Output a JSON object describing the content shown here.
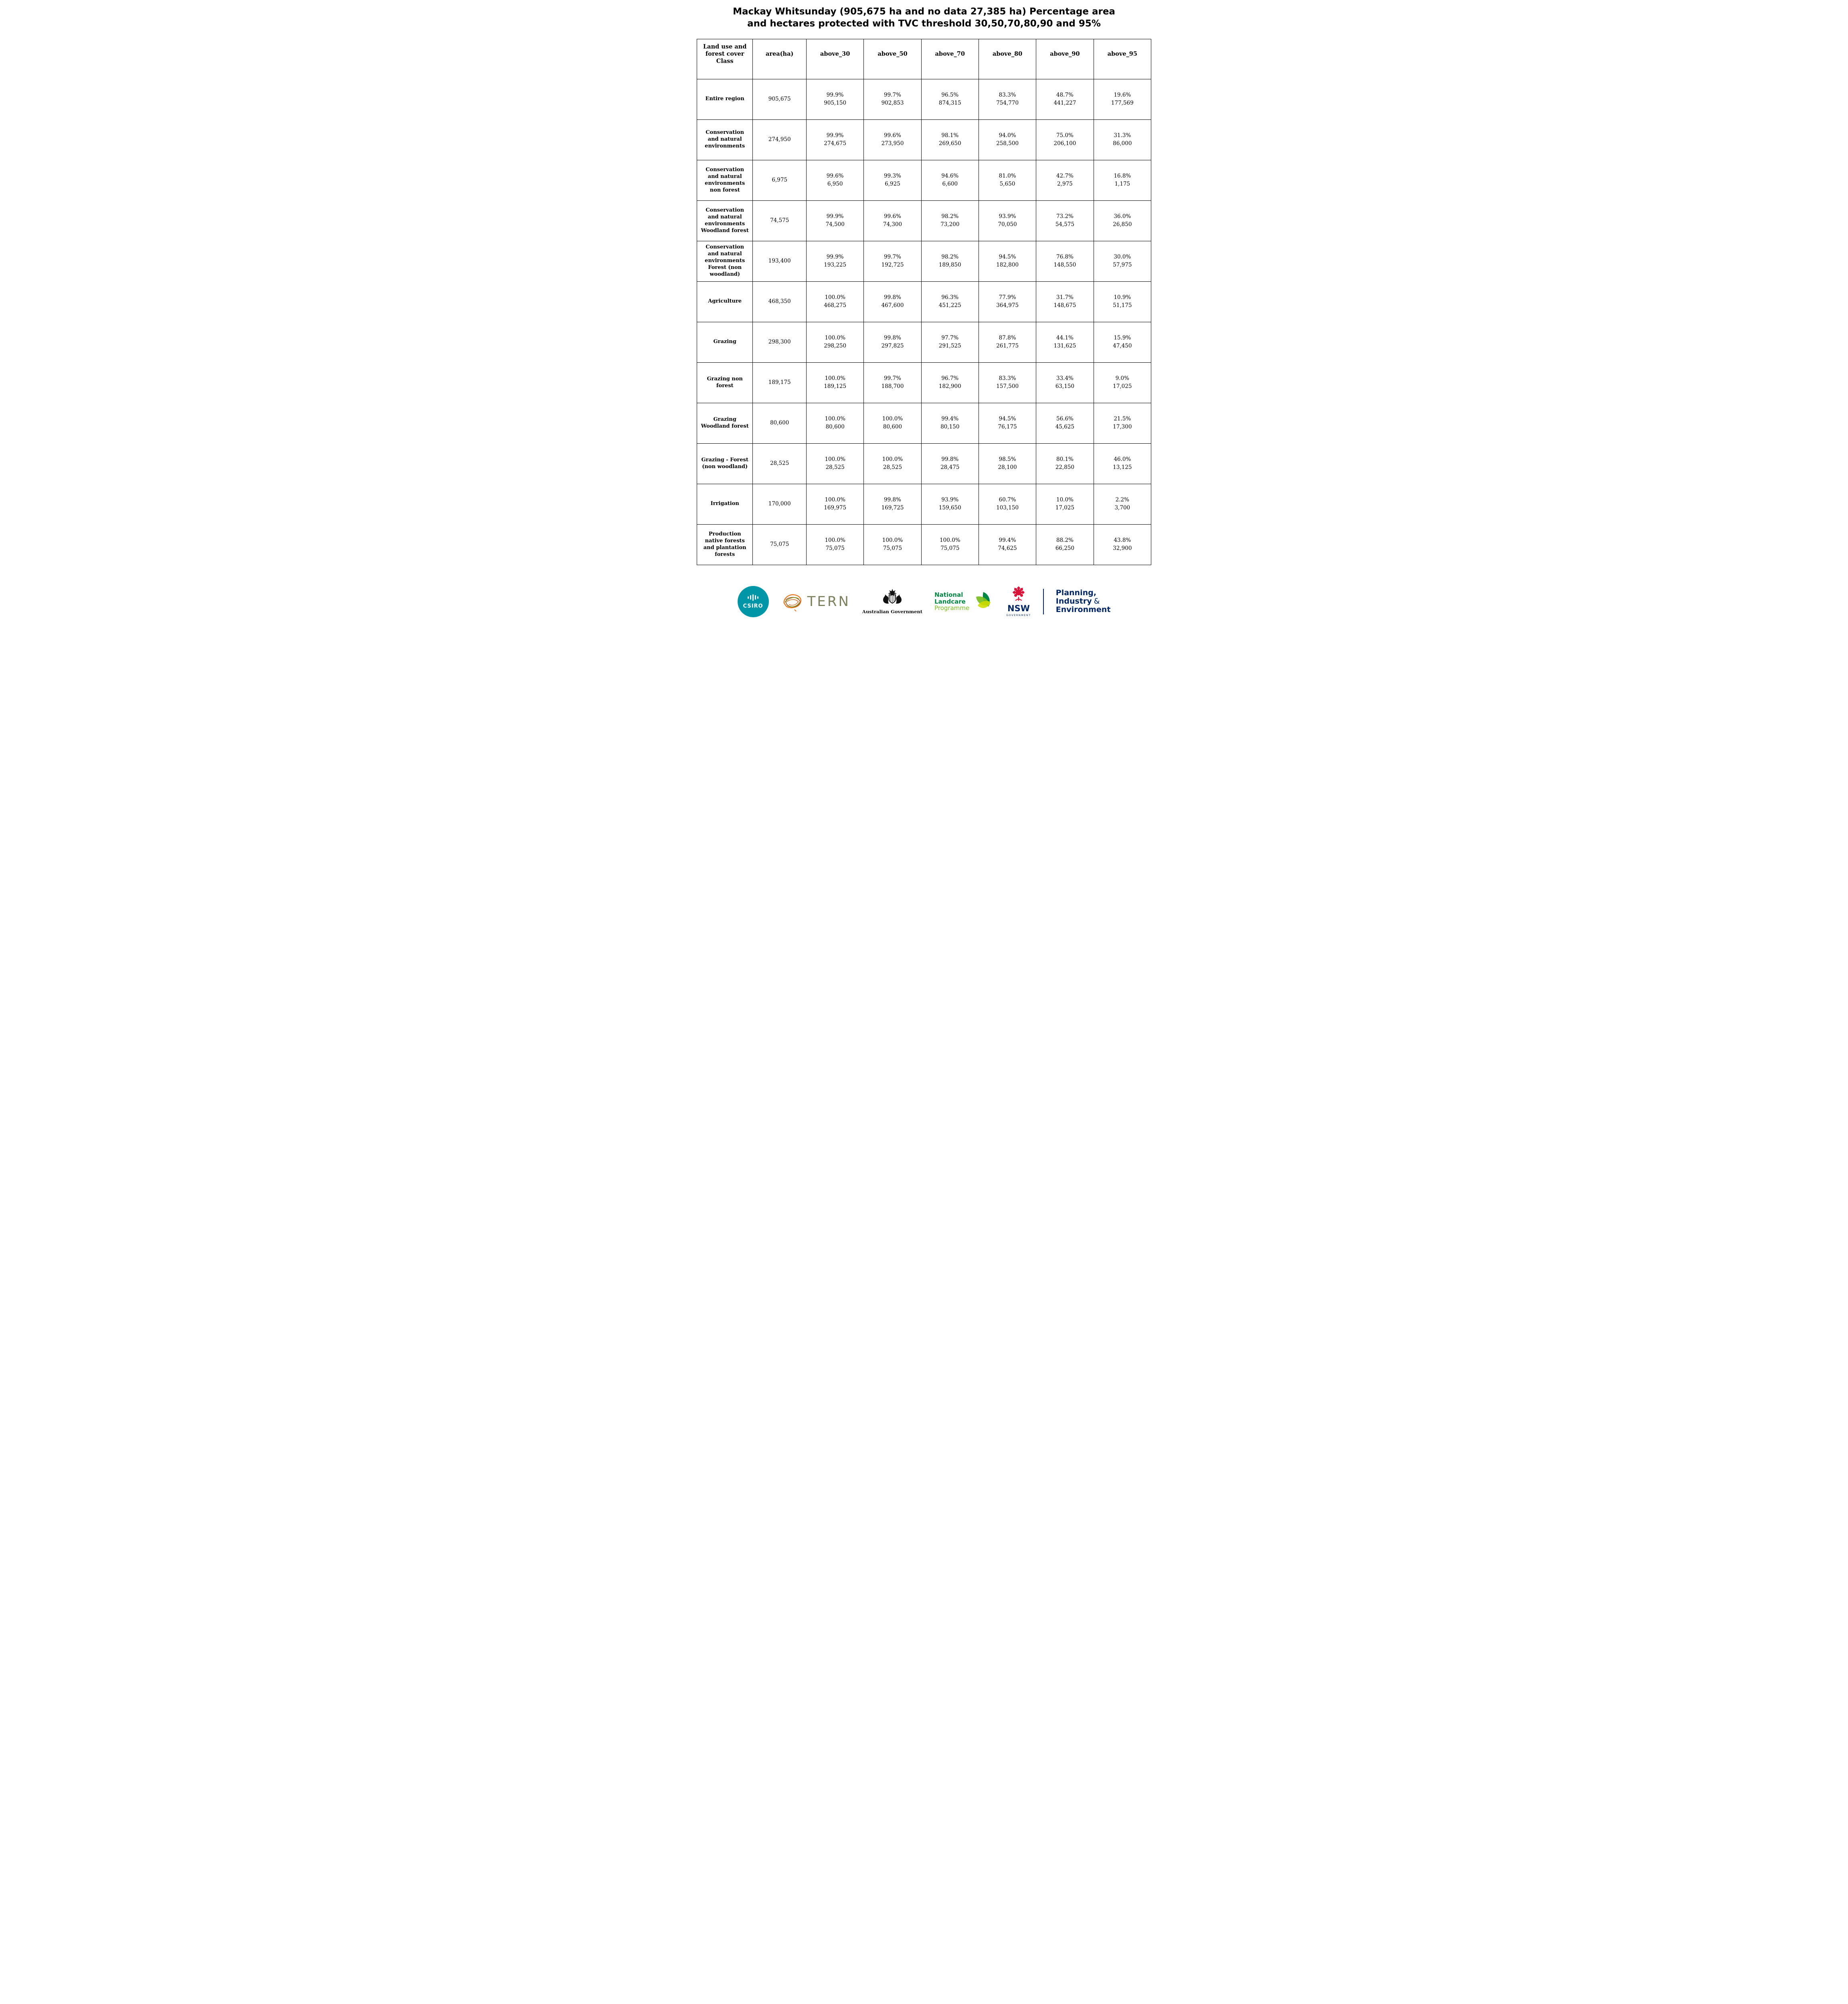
{
  "page": {
    "title_line1": "Mackay Whitsunday (905,675 ha and no data 27,385 ha) Percentage area",
    "title_line2": "and hectares protected with TVC threshold 30,50,70,80,90 and 95%"
  },
  "table": {
    "headers": [
      "Land use and forest cover Class",
      "area(ha)",
      "above_30",
      "above_50",
      "above_70",
      "above_80",
      "above_90",
      "above_95"
    ],
    "rows": [
      {
        "class": "Entire region",
        "area": "905,675",
        "cells": [
          [
            "99.9%",
            "905,150"
          ],
          [
            "99.7%",
            "902,853"
          ],
          [
            "96.5%",
            "874,315"
          ],
          [
            "83.3%",
            "754,770"
          ],
          [
            "48.7%",
            "441,227"
          ],
          [
            "19.6%",
            "177,569"
          ]
        ]
      },
      {
        "class": "Conservation and natural environments",
        "area": "274,950",
        "cells": [
          [
            "99.9%",
            "274,675"
          ],
          [
            "99.6%",
            "273,950"
          ],
          [
            "98.1%",
            "269,650"
          ],
          [
            "94.0%",
            "258,500"
          ],
          [
            "75.0%",
            "206,100"
          ],
          [
            "31.3%",
            "86,000"
          ]
        ]
      },
      {
        "class": "Conservation and natural environments non forest",
        "area": "6,975",
        "cells": [
          [
            "99.6%",
            "6,950"
          ],
          [
            "99.3%",
            "6,925"
          ],
          [
            "94.6%",
            "6,600"
          ],
          [
            "81.0%",
            "5,650"
          ],
          [
            "42.7%",
            "2,975"
          ],
          [
            "16.8%",
            "1,175"
          ]
        ]
      },
      {
        "class": "Conservation and natural environments Woodland forest",
        "area": "74,575",
        "cells": [
          [
            "99.9%",
            "74,500"
          ],
          [
            "99.6%",
            "74,300"
          ],
          [
            "98.2%",
            "73,200"
          ],
          [
            "93.9%",
            "70,050"
          ],
          [
            "73.2%",
            "54,575"
          ],
          [
            "36.0%",
            "26,850"
          ]
        ]
      },
      {
        "class": "Conservation and natural environments Forest (non woodland)",
        "area": "193,400",
        "cells": [
          [
            "99.9%",
            "193,225"
          ],
          [
            "99.7%",
            "192,725"
          ],
          [
            "98.2%",
            "189,850"
          ],
          [
            "94.5%",
            "182,800"
          ],
          [
            "76.8%",
            "148,550"
          ],
          [
            "30.0%",
            "57,975"
          ]
        ]
      },
      {
        "class": "Agriculture",
        "area": "468,350",
        "cells": [
          [
            "100.0%",
            "468,275"
          ],
          [
            "99.8%",
            "467,600"
          ],
          [
            "96.3%",
            "451,225"
          ],
          [
            "77.9%",
            "364,975"
          ],
          [
            "31.7%",
            "148,675"
          ],
          [
            "10.9%",
            "51,175"
          ]
        ]
      },
      {
        "class": "Grazing",
        "area": "298,300",
        "cells": [
          [
            "100.0%",
            "298,250"
          ],
          [
            "99.8%",
            "297,825"
          ],
          [
            "97.7%",
            "291,525"
          ],
          [
            "87.8%",
            "261,775"
          ],
          [
            "44.1%",
            "131,625"
          ],
          [
            "15.9%",
            "47,450"
          ]
        ]
      },
      {
        "class": "Grazing non forest",
        "area": "189,175",
        "cells": [
          [
            "100.0%",
            "189,125"
          ],
          [
            "99.7%",
            "188,700"
          ],
          [
            "96.7%",
            "182,900"
          ],
          [
            "83.3%",
            "157,500"
          ],
          [
            "33.4%",
            "63,150"
          ],
          [
            "9.0%",
            "17,025"
          ]
        ]
      },
      {
        "class": "Grazing Woodland forest",
        "area": "80,600",
        "cells": [
          [
            "100.0%",
            "80,600"
          ],
          [
            "100.0%",
            "80,600"
          ],
          [
            "99.4%",
            "80,150"
          ],
          [
            "94.5%",
            "76,175"
          ],
          [
            "56.6%",
            "45,625"
          ],
          [
            "21.5%",
            "17,300"
          ]
        ]
      },
      {
        "class": "Grazing - Forest (non woodland)",
        "area": "28,525",
        "cells": [
          [
            "100.0%",
            "28,525"
          ],
          [
            "100.0%",
            "28,525"
          ],
          [
            "99.8%",
            "28,475"
          ],
          [
            "98.5%",
            "28,100"
          ],
          [
            "80.1%",
            "22,850"
          ],
          [
            "46.0%",
            "13,125"
          ]
        ]
      },
      {
        "class": "Irrigation",
        "area": "170,000",
        "cells": [
          [
            "100.0%",
            "169,975"
          ],
          [
            "99.8%",
            "169,725"
          ],
          [
            "93.9%",
            "159,650"
          ],
          [
            "60.7%",
            "103,150"
          ],
          [
            "10.0%",
            "17,025"
          ],
          [
            "2.2%",
            "3,700"
          ]
        ]
      },
      {
        "class": "Production native forests and plantation forests",
        "area": "75,075",
        "cells": [
          [
            "100.0%",
            "75,075"
          ],
          [
            "100.0%",
            "75,075"
          ],
          [
            "100.0%",
            "75,075"
          ],
          [
            "99.4%",
            "74,625"
          ],
          [
            "88.2%",
            "66,250"
          ],
          [
            "43.8%",
            "32,900"
          ]
        ]
      }
    ]
  },
  "footer": {
    "csiro": {
      "label": "CSIRO"
    },
    "tern": {
      "label": "TERN"
    },
    "aus_gov": {
      "label": "Australian Government"
    },
    "landcare": {
      "line1": "National",
      "line2": "Landcare",
      "line3": "Programme"
    },
    "nsw": {
      "label": "NSW",
      "sublabel": "GOVERNMENT"
    },
    "pie": {
      "line1": "Planning,",
      "line2": "Industry",
      "amp": "&",
      "line3": "Environment"
    }
  },
  "colors": {
    "csiro_teal": "#0096a7",
    "tern_olive": "#7d805e",
    "tern_orange": "#e87722",
    "landcare_green": "#008542",
    "landcare_light_green": "#78be20",
    "nsw_red": "#d7153a",
    "gov_navy": "#002664"
  }
}
